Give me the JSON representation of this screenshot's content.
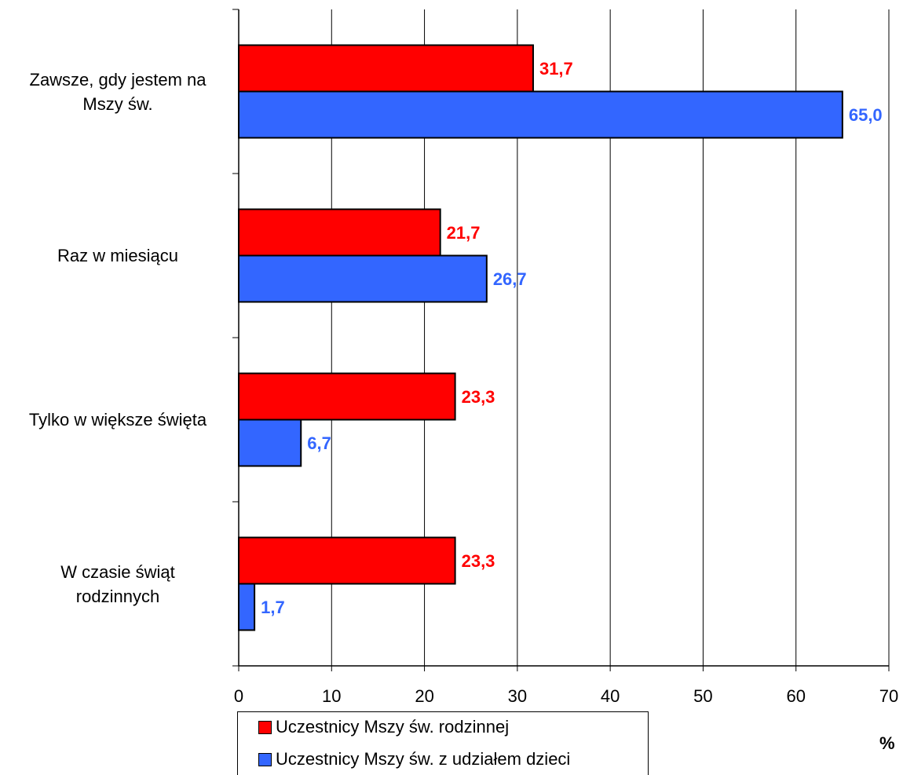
{
  "chart_data": {
    "type": "bar",
    "orientation": "horizontal",
    "categories": [
      [
        "Zawsze, gdy jestem na",
        "Mszy św."
      ],
      [
        "Raz w miesiącu"
      ],
      [
        "Tylko w większe święta"
      ],
      [
        "W czasie świąt",
        "rodzinnych"
      ]
    ],
    "series": [
      {
        "name": "Uczestnicy Mszy św. rodzinnej",
        "values": [
          31.7,
          21.7,
          23.3,
          23.3
        ],
        "labels": [
          "31,7",
          "21,7",
          "23,3",
          "23,3"
        ],
        "color": "#FF0000"
      },
      {
        "name": "Uczestnicy Mszy św. z udziałem dzieci",
        "values": [
          65.0,
          26.7,
          6.7,
          1.7
        ],
        "labels": [
          "65,0",
          "26,7",
          "6,7",
          "1,7"
        ],
        "color": "#3366FF"
      }
    ],
    "xlim": [
      0,
      70
    ],
    "xticks": [
      "0",
      "10",
      "20",
      "30",
      "40",
      "50",
      "60",
      "70"
    ],
    "xlabel": "%",
    "grid": true,
    "legend_position": "bottom"
  }
}
